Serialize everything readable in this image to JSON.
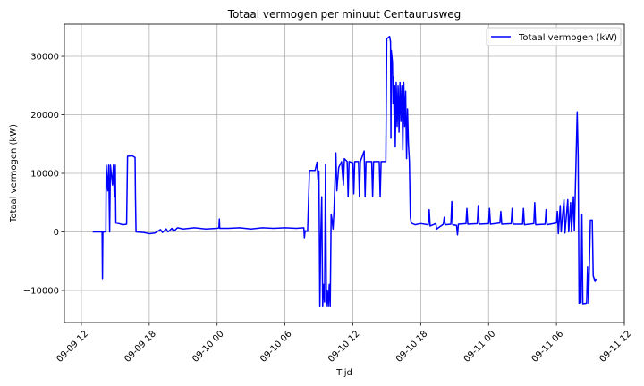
{
  "chart_data": {
    "type": "line",
    "title": "Totaal vermogen per minuut Centaurusweg",
    "xlabel": "Tijd",
    "ylabel": "Totaal vermogen (kW)",
    "legend": {
      "placement": "top-right",
      "entries": [
        "Totaal vermogen (kW)"
      ]
    },
    "grid": true,
    "colors": {
      "series": "#0000ff",
      "grid": "#b0b0b0",
      "axes": "#000000"
    },
    "xlim": [
      "2024-09-09 10:30",
      "2024-09-11 12:00"
    ],
    "ylim": [
      -15500,
      35500
    ],
    "x_ticks": [
      {
        "value": "2024-09-09 12:00",
        "label": "09-09 12"
      },
      {
        "value": "2024-09-09 18:00",
        "label": "09-09 18"
      },
      {
        "value": "2024-09-10 00:00",
        "label": "09-10 00"
      },
      {
        "value": "2024-09-10 06:00",
        "label": "09-10 06"
      },
      {
        "value": "2024-09-10 12:00",
        "label": "09-10 12"
      },
      {
        "value": "2024-09-10 18:00",
        "label": "09-10 18"
      },
      {
        "value": "2024-09-11 00:00",
        "label": "09-11 00"
      },
      {
        "value": "2024-09-11 06:00",
        "label": "09-11 06"
      },
      {
        "value": "2024-09-11 12:00",
        "label": "09-11 12"
      }
    ],
    "y_ticks": [
      {
        "value": -10000,
        "label": "−10000"
      },
      {
        "value": 0,
        "label": "0"
      },
      {
        "value": 10000,
        "label": "10000"
      },
      {
        "value": 20000,
        "label": "20000"
      },
      {
        "value": 30000,
        "label": "30000"
      }
    ],
    "series": [
      {
        "name": "Totaal vermogen (kW)",
        "points": [
          [
            "2024-09-09 13:00",
            0
          ],
          [
            "2024-09-09 13:30",
            0
          ],
          [
            "2024-09-09 13:50",
            0
          ],
          [
            "2024-09-09 13:52",
            -8000
          ],
          [
            "2024-09-09 13:54",
            0
          ],
          [
            "2024-09-09 14:10",
            0
          ],
          [
            "2024-09-09 14:12",
            11400
          ],
          [
            "2024-09-09 14:20",
            7000
          ],
          [
            "2024-09-09 14:25",
            11400
          ],
          [
            "2024-09-09 14:30",
            0
          ],
          [
            "2024-09-09 14:34",
            11400
          ],
          [
            "2024-09-09 14:45",
            8000
          ],
          [
            "2024-09-09 14:50",
            11400
          ],
          [
            "2024-09-09 14:55",
            6000
          ],
          [
            "2024-09-09 15:00",
            11400
          ],
          [
            "2024-09-09 15:03",
            1500
          ],
          [
            "2024-09-09 15:20",
            1400
          ],
          [
            "2024-09-09 15:40",
            1200
          ],
          [
            "2024-09-09 16:00",
            1300
          ],
          [
            "2024-09-09 16:05",
            12900
          ],
          [
            "2024-09-09 16:30",
            13000
          ],
          [
            "2024-09-09 16:45",
            12700
          ],
          [
            "2024-09-09 16:47",
            6000
          ],
          [
            "2024-09-09 16:50",
            0
          ],
          [
            "2024-09-09 17:30",
            -100
          ],
          [
            "2024-09-09 18:00",
            -300
          ],
          [
            "2024-09-09 18:30",
            -200
          ],
          [
            "2024-09-09 19:00",
            400
          ],
          [
            "2024-09-09 19:10",
            -100
          ],
          [
            "2024-09-09 19:30",
            500
          ],
          [
            "2024-09-09 19:40",
            0
          ],
          [
            "2024-09-09 20:00",
            600
          ],
          [
            "2024-09-09 20:10",
            100
          ],
          [
            "2024-09-09 20:30",
            700
          ],
          [
            "2024-09-09 21:00",
            500
          ],
          [
            "2024-09-09 22:00",
            700
          ],
          [
            "2024-09-09 23:00",
            500
          ],
          [
            "2024-09-10 00:00",
            600
          ],
          [
            "2024-09-10 00:10",
            700
          ],
          [
            "2024-09-10 00:12",
            2200
          ],
          [
            "2024-09-10 00:14",
            600
          ],
          [
            "2024-09-10 01:00",
            600
          ],
          [
            "2024-09-10 02:00",
            700
          ],
          [
            "2024-09-10 03:00",
            500
          ],
          [
            "2024-09-10 04:00",
            700
          ],
          [
            "2024-09-10 05:00",
            600
          ],
          [
            "2024-09-10 06:00",
            700
          ],
          [
            "2024-09-10 07:00",
            600
          ],
          [
            "2024-09-10 07:40",
            700
          ],
          [
            "2024-09-10 07:43",
            -1000
          ],
          [
            "2024-09-10 07:47",
            200
          ],
          [
            "2024-09-10 08:00",
            100
          ],
          [
            "2024-09-10 08:10",
            10500
          ],
          [
            "2024-09-10 08:40",
            10500
          ],
          [
            "2024-09-10 08:50",
            11900
          ],
          [
            "2024-09-10 08:55",
            9000
          ],
          [
            "2024-09-10 09:00",
            10400
          ],
          [
            "2024-09-10 09:05",
            -12800
          ],
          [
            "2024-09-10 09:10",
            -500
          ],
          [
            "2024-09-10 09:15",
            6000
          ],
          [
            "2024-09-10 09:20",
            -12800
          ],
          [
            "2024-09-10 09:25",
            -9000
          ],
          [
            "2024-09-10 09:30",
            -12000
          ],
          [
            "2024-09-10 09:35",
            11500
          ],
          [
            "2024-09-10 09:40",
            -12800
          ],
          [
            "2024-09-10 09:45",
            -10000
          ],
          [
            "2024-09-10 09:50",
            -12800
          ],
          [
            "2024-09-10 09:55",
            -9000
          ],
          [
            "2024-09-10 10:00",
            -12800
          ],
          [
            "2024-09-10 10:05",
            3000
          ],
          [
            "2024-09-10 10:10",
            2000
          ],
          [
            "2024-09-10 10:15",
            500
          ],
          [
            "2024-09-10 10:20",
            3500
          ],
          [
            "2024-09-10 10:30",
            13500
          ],
          [
            "2024-09-10 10:35",
            7000
          ],
          [
            "2024-09-10 10:45",
            11000
          ],
          [
            "2024-09-10 11:00",
            12000
          ],
          [
            "2024-09-10 11:10",
            8000
          ],
          [
            "2024-09-10 11:15",
            12500
          ],
          [
            "2024-09-10 11:30",
            12000
          ],
          [
            "2024-09-10 11:35",
            6000
          ],
          [
            "2024-09-10 11:40",
            12000
          ],
          [
            "2024-09-10 12:00",
            11800
          ],
          [
            "2024-09-10 12:05",
            6500
          ],
          [
            "2024-09-10 12:10",
            12000
          ],
          [
            "2024-09-10 12:30",
            12000
          ],
          [
            "2024-09-10 12:35",
            6000
          ],
          [
            "2024-09-10 12:40",
            12000
          ],
          [
            "2024-09-10 13:00",
            13800
          ],
          [
            "2024-09-10 13:05",
            6000
          ],
          [
            "2024-09-10 13:10",
            12000
          ],
          [
            "2024-09-10 13:40",
            12000
          ],
          [
            "2024-09-10 13:45",
            6000
          ],
          [
            "2024-09-10 13:50",
            12000
          ],
          [
            "2024-09-10 14:20",
            12000
          ],
          [
            "2024-09-10 14:25",
            6000
          ],
          [
            "2024-09-10 14:30",
            12000
          ],
          [
            "2024-09-10 14:55",
            12000
          ],
          [
            "2024-09-10 15:00",
            33000
          ],
          [
            "2024-09-10 15:15",
            33400
          ],
          [
            "2024-09-10 15:20",
            32500
          ],
          [
            "2024-09-10 15:22",
            16000
          ],
          [
            "2024-09-10 15:24",
            31000
          ],
          [
            "2024-09-10 15:30",
            29000
          ],
          [
            "2024-09-10 15:33",
            22000
          ],
          [
            "2024-09-10 15:36",
            26500
          ],
          [
            "2024-09-10 15:39",
            20000
          ],
          [
            "2024-09-10 15:42",
            25000
          ],
          [
            "2024-09-10 15:45",
            14500
          ],
          [
            "2024-09-10 15:50",
            25500
          ],
          [
            "2024-09-10 15:55",
            18000
          ],
          [
            "2024-09-10 16:00",
            25000
          ],
          [
            "2024-09-10 16:05",
            17000
          ],
          [
            "2024-09-10 16:10",
            25500
          ],
          [
            "2024-09-10 16:15",
            19000
          ],
          [
            "2024-09-10 16:20",
            25000
          ],
          [
            "2024-09-10 16:25",
            14000
          ],
          [
            "2024-09-10 16:30",
            25500
          ],
          [
            "2024-09-10 16:35",
            18000
          ],
          [
            "2024-09-10 16:40",
            24000
          ],
          [
            "2024-09-10 16:45",
            12500
          ],
          [
            "2024-09-10 16:50",
            21000
          ],
          [
            "2024-09-10 16:55",
            15000
          ],
          [
            "2024-09-10 17:00",
            12000
          ],
          [
            "2024-09-10 17:05",
            2500
          ],
          [
            "2024-09-10 17:10",
            1500
          ],
          [
            "2024-09-10 17:30",
            1200
          ],
          [
            "2024-09-10 18:00",
            1400
          ],
          [
            "2024-09-10 18:40",
            1200
          ],
          [
            "2024-09-10 18:45",
            3800
          ],
          [
            "2024-09-10 18:50",
            1000
          ],
          [
            "2024-09-10 19:20",
            1400
          ],
          [
            "2024-09-10 19:25",
            500
          ],
          [
            "2024-09-10 20:00",
            1300
          ],
          [
            "2024-09-10 20:05",
            2500
          ],
          [
            "2024-09-10 20:10",
            1200
          ],
          [
            "2024-09-10 20:40",
            1300
          ],
          [
            "2024-09-10 20:45",
            5200
          ],
          [
            "2024-09-10 20:50",
            1200
          ],
          [
            "2024-09-10 21:10",
            1100
          ],
          [
            "2024-09-10 21:15",
            -500
          ],
          [
            "2024-09-10 21:20",
            1300
          ],
          [
            "2024-09-10 22:00",
            1400
          ],
          [
            "2024-09-10 22:05",
            4000
          ],
          [
            "2024-09-10 22:10",
            1300
          ],
          [
            "2024-09-10 23:00",
            1400
          ],
          [
            "2024-09-10 23:05",
            4500
          ],
          [
            "2024-09-10 23:10",
            1300
          ],
          [
            "2024-09-11 00:00",
            1400
          ],
          [
            "2024-09-11 00:05",
            4000
          ],
          [
            "2024-09-11 00:10",
            1300
          ],
          [
            "2024-09-11 01:00",
            1500
          ],
          [
            "2024-09-11 01:05",
            3500
          ],
          [
            "2024-09-11 01:10",
            1300
          ],
          [
            "2024-09-11 02:00",
            1400
          ],
          [
            "2024-09-11 02:05",
            4000
          ],
          [
            "2024-09-11 02:10",
            1300
          ],
          [
            "2024-09-11 03:00",
            1300
          ],
          [
            "2024-09-11 03:05",
            4000
          ],
          [
            "2024-09-11 03:10",
            1200
          ],
          [
            "2024-09-11 04:00",
            1400
          ],
          [
            "2024-09-11 04:05",
            5000
          ],
          [
            "2024-09-11 04:10",
            1200
          ],
          [
            "2024-09-11 05:00",
            1300
          ],
          [
            "2024-09-11 05:05",
            3800
          ],
          [
            "2024-09-11 05:10",
            1200
          ],
          [
            "2024-09-11 06:00",
            1500
          ],
          [
            "2024-09-11 06:05",
            3500
          ],
          [
            "2024-09-11 06:10",
            -300
          ],
          [
            "2024-09-11 06:20",
            4500
          ],
          [
            "2024-09-11 06:25",
            0
          ],
          [
            "2024-09-11 06:40",
            5500
          ],
          [
            "2024-09-11 06:45",
            -200
          ],
          [
            "2024-09-11 07:00",
            5500
          ],
          [
            "2024-09-11 07:05",
            0
          ],
          [
            "2024-09-11 07:15",
            5000
          ],
          [
            "2024-09-11 07:20",
            0
          ],
          [
            "2024-09-11 07:30",
            6000
          ],
          [
            "2024-09-11 07:35",
            200
          ],
          [
            "2024-09-11 07:50",
            20500
          ],
          [
            "2024-09-11 07:55",
            13000
          ],
          [
            "2024-09-11 08:00",
            -12200
          ],
          [
            "2024-09-11 08:10",
            -12100
          ],
          [
            "2024-09-11 08:15",
            3000
          ],
          [
            "2024-09-11 08:20",
            -12300
          ],
          [
            "2024-09-11 08:40",
            -12200
          ],
          [
            "2024-09-11 08:45",
            -6000
          ],
          [
            "2024-09-11 08:50",
            -12200
          ],
          [
            "2024-09-11 09:00",
            2000
          ],
          [
            "2024-09-11 09:10",
            2000
          ],
          [
            "2024-09-11 09:15",
            -7500
          ],
          [
            "2024-09-11 09:25",
            -8500
          ],
          [
            "2024-09-11 09:30",
            -8000
          ]
        ]
      }
    ]
  }
}
